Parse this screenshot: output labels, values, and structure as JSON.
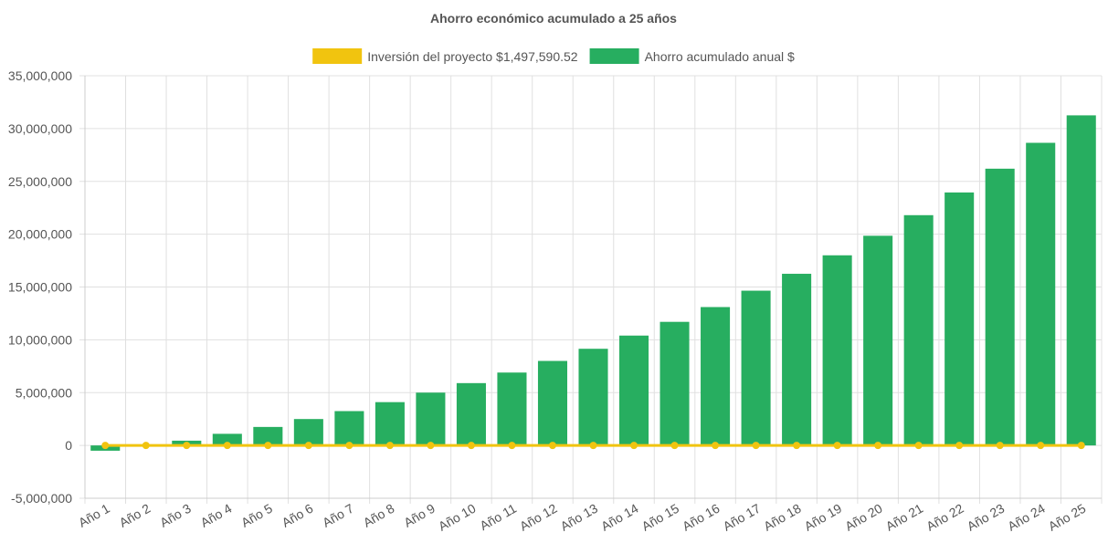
{
  "chart_data": {
    "type": "bar",
    "title": "Ahorro económico acumulado a 25 años",
    "legend_position": "top",
    "grid": true,
    "categories": [
      "Año 1",
      "Año 2",
      "Año 3",
      "Año 4",
      "Año 5",
      "Año 6",
      "Año 7",
      "Año 8",
      "Año 9",
      "Año 10",
      "Año 11",
      "Año 12",
      "Año 13",
      "Año 14",
      "Año 15",
      "Año 16",
      "Año 17",
      "Año 18",
      "Año 19",
      "Año 20",
      "Año 21",
      "Año 22",
      "Año 23",
      "Año 24",
      "Año 25"
    ],
    "ylim": [
      -5000000,
      35000000
    ],
    "yticks": [
      35000000,
      30000000,
      25000000,
      20000000,
      15000000,
      10000000,
      5000000,
      0,
      -5000000
    ],
    "ytick_labels": [
      "35,000,000",
      "30,000,000",
      "25,000,000",
      "20,000,000",
      "15,000,000",
      "10,000,000",
      "5,000,000",
      "0",
      "-5,000,000"
    ],
    "series": [
      {
        "name": "Inversión del proyecto $1,497,590.52",
        "type": "line",
        "color": "#f1c40f",
        "values": [
          0,
          0,
          0,
          0,
          0,
          0,
          0,
          0,
          0,
          0,
          0,
          0,
          0,
          0,
          0,
          0,
          0,
          0,
          0,
          0,
          0,
          0,
          0,
          0,
          0
        ]
      },
      {
        "name": "Ahorro acumulado anual $",
        "type": "bar",
        "color": "#27ae60",
        "values": [
          -500000,
          50000,
          450000,
          1100000,
          1750000,
          2500000,
          3250000,
          4100000,
          5000000,
          5900000,
          6900000,
          8000000,
          9150000,
          10400000,
          11700000,
          13100000,
          14650000,
          16250000,
          18000000,
          19850000,
          21800000,
          23950000,
          26200000,
          28650000,
          31250000
        ]
      }
    ]
  }
}
